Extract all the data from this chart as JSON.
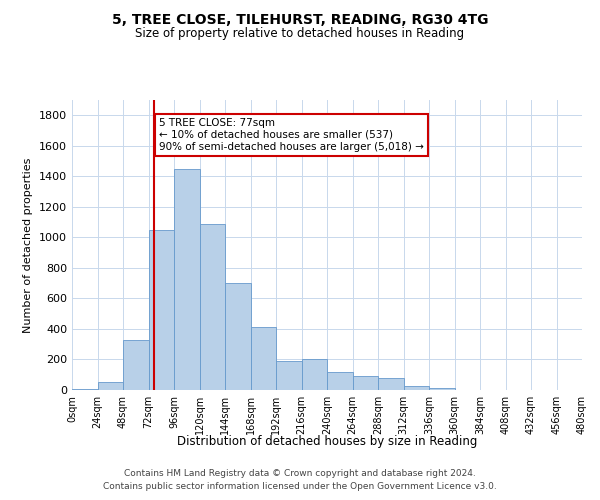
{
  "title": "5, TREE CLOSE, TILEHURST, READING, RG30 4TG",
  "subtitle": "Size of property relative to detached houses in Reading",
  "xlabel": "Distribution of detached houses by size in Reading",
  "ylabel": "Number of detached properties",
  "footer_line1": "Contains HM Land Registry data © Crown copyright and database right 2024.",
  "footer_line2": "Contains public sector information licensed under the Open Government Licence v3.0.",
  "annotation_title": "5 TREE CLOSE: 77sqm",
  "annotation_line1": "← 10% of detached houses are smaller (537)",
  "annotation_line2": "90% of semi-detached houses are larger (5,018) →",
  "property_size": 77,
  "bar_color": "#b8d0e8",
  "bar_edge_color": "#6699cc",
  "vline_color": "#cc0000",
  "annotation_box_edge": "#cc0000",
  "background_color": "#ffffff",
  "grid_color": "#c8d8ec",
  "bin_edges": [
    0,
    24,
    48,
    72,
    96,
    120,
    144,
    168,
    192,
    216,
    240,
    264,
    288,
    312,
    336,
    360,
    384,
    408,
    432,
    456,
    480
  ],
  "bin_labels": [
    "0sqm",
    "24sqm",
    "48sqm",
    "72sqm",
    "96sqm",
    "120sqm",
    "144sqm",
    "168sqm",
    "192sqm",
    "216sqm",
    "240sqm",
    "264sqm",
    "288sqm",
    "312sqm",
    "336sqm",
    "360sqm",
    "384sqm",
    "408sqm",
    "432sqm",
    "456sqm",
    "480sqm"
  ],
  "counts": [
    8,
    50,
    330,
    1050,
    1450,
    1090,
    700,
    410,
    190,
    200,
    120,
    90,
    80,
    28,
    10,
    3,
    2,
    0,
    0,
    0
  ],
  "ylim": [
    0,
    1900
  ],
  "yticks": [
    0,
    200,
    400,
    600,
    800,
    1000,
    1200,
    1400,
    1600,
    1800
  ]
}
